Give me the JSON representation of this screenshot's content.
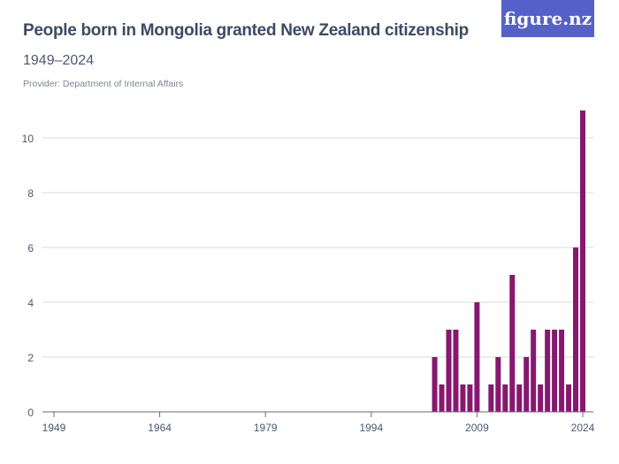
{
  "header": {
    "title": "People born in Mongolia granted New Zealand citizenship",
    "subtitle": "1949–2024",
    "provider": "Provider: Department of Internal Affairs",
    "logo": "figure.nz"
  },
  "colors": {
    "bar": "#86186f",
    "grid": "#d9d9d9",
    "axis": "#6b6b6b",
    "logo_bg": "#5561c8"
  },
  "chart_data": {
    "type": "bar",
    "title": "People born in Mongolia granted New Zealand citizenship",
    "xlim": [
      1949,
      2024
    ],
    "ylim": [
      0,
      11
    ],
    "grid": true,
    "y_ticks": [
      0,
      2,
      4,
      6,
      8,
      10
    ],
    "x_ticks": [
      1949,
      1964,
      1979,
      1994,
      2009,
      2024
    ],
    "x": [
      2003,
      2004,
      2005,
      2006,
      2007,
      2008,
      2009,
      2010,
      2011,
      2012,
      2013,
      2014,
      2015,
      2016,
      2017,
      2018,
      2019,
      2020,
      2021,
      2022,
      2023,
      2024
    ],
    "values": [
      2,
      1,
      3,
      3,
      1,
      1,
      4,
      0,
      1,
      2,
      1,
      5,
      1,
      2,
      3,
      1,
      3,
      3,
      3,
      1,
      6,
      11
    ],
    "note_zero_years": "1949–2002 all 0"
  }
}
